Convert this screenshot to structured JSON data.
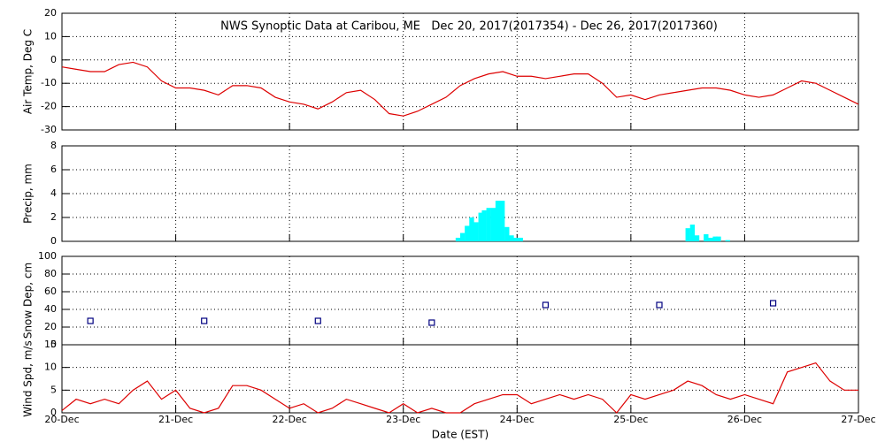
{
  "chart_data": [
    {
      "type": "line",
      "title": "NWS Synoptic Data at Caribou, ME   Dec 20, 2017(2017354) - Dec 26, 2017(2017360)",
      "ylabel": "Air Temp, Deg C",
      "color": "#dd0000",
      "x": [
        0,
        0.125,
        0.25,
        0.375,
        0.5,
        0.625,
        0.75,
        0.875,
        1,
        1.125,
        1.25,
        1.375,
        1.5,
        1.625,
        1.75,
        1.875,
        2,
        2.125,
        2.25,
        2.375,
        2.5,
        2.625,
        2.75,
        2.875,
        3,
        3.125,
        3.25,
        3.375,
        3.5,
        3.625,
        3.75,
        3.875,
        4,
        4.125,
        4.25,
        4.375,
        4.5,
        4.625,
        4.75,
        4.875,
        5,
        5.125,
        5.25,
        5.375,
        5.5,
        5.625,
        5.75,
        5.875,
        6,
        6.125,
        6.25,
        6.375,
        6.5,
        6.625,
        6.75,
        6.875,
        7
      ],
      "values": [
        -3,
        -4,
        -5,
        -5,
        -2,
        -1,
        -3,
        -9,
        -12,
        -12,
        -13,
        -15,
        -11,
        -11,
        -12,
        -16,
        -18,
        -19,
        -21,
        -18,
        -14,
        -13,
        -17,
        -23,
        -24,
        -22,
        -19,
        -16,
        -11,
        -8,
        -6,
        -5,
        -7,
        -7,
        -8,
        -7,
        -6,
        -6,
        -10,
        -16,
        -15,
        -17,
        -15,
        -14,
        -13,
        -12,
        -12,
        -13,
        -15,
        -16,
        -15,
        -12,
        -9,
        -10,
        -13,
        -16,
        -19
      ],
      "xlim": [
        0,
        7
      ],
      "xticks": [
        0,
        1,
        2,
        3,
        4,
        5,
        6,
        7
      ],
      "ylim": [
        -30,
        20
      ],
      "yticks": [
        -30,
        -20,
        -10,
        0,
        10,
        20
      ],
      "grid": true
    },
    {
      "type": "bar",
      "ylabel": "Precip, mm",
      "color": "#00ffff",
      "x": [
        3.46,
        3.5,
        3.54,
        3.58,
        3.62,
        3.66,
        3.69,
        3.73,
        3.77,
        3.81,
        3.85,
        3.89,
        3.93,
        3.97,
        4.01,
        5.48,
        5.52,
        5.56,
        5.64,
        5.68,
        5.72,
        5.75,
        5.83
      ],
      "values": [
        0.3,
        0.7,
        1.3,
        2.0,
        1.6,
        2.4,
        2.6,
        2.8,
        2.8,
        3.4,
        3.4,
        1.2,
        0.5,
        0.3,
        0.3,
        1.1,
        1.4,
        0.5,
        0.6,
        0.3,
        0.4,
        0.4,
        0.1
      ],
      "xlim": [
        0,
        7
      ],
      "xticks": [
        0,
        1,
        2,
        3,
        4,
        5,
        6,
        7
      ],
      "ylim": [
        0,
        8
      ],
      "yticks": [
        0,
        2,
        4,
        6,
        8
      ],
      "grid": true
    },
    {
      "type": "scatter",
      "ylabel": "Snow Dep, cm",
      "color": "#000080",
      "x": [
        0.25,
        1.25,
        2.25,
        3.25,
        4.25,
        5.25,
        6.25
      ],
      "values": [
        27,
        27,
        27,
        25,
        45,
        45,
        47
      ],
      "xlim": [
        0,
        7
      ],
      "xticks": [
        0,
        1,
        2,
        3,
        4,
        5,
        6,
        7
      ],
      "ylim": [
        0,
        100
      ],
      "yticks": [
        0,
        20,
        40,
        60,
        80,
        100
      ],
      "grid": true
    },
    {
      "type": "line",
      "ylabel": "Wind Spd, m/s",
      "xlabel": "Date (EST)",
      "color": "#dd0000",
      "x": [
        0,
        0.125,
        0.25,
        0.375,
        0.5,
        0.625,
        0.75,
        0.875,
        1,
        1.125,
        1.25,
        1.375,
        1.5,
        1.625,
        1.75,
        1.875,
        2,
        2.125,
        2.25,
        2.375,
        2.5,
        2.625,
        2.75,
        2.875,
        3,
        3.125,
        3.25,
        3.375,
        3.5,
        3.625,
        3.75,
        3.875,
        4,
        4.125,
        4.25,
        4.375,
        4.5,
        4.625,
        4.75,
        4.875,
        5,
        5.125,
        5.25,
        5.375,
        5.5,
        5.625,
        5.75,
        5.875,
        6,
        6.125,
        6.25,
        6.375,
        6.5,
        6.625,
        6.75,
        6.875,
        7
      ],
      "values": [
        0.5,
        3,
        2,
        3,
        2,
        5,
        7,
        3,
        5,
        1,
        0,
        1,
        6,
        6,
        5,
        3,
        1,
        2,
        0,
        1,
        3,
        2,
        1,
        0,
        2,
        0,
        1,
        0,
        0,
        2,
        3,
        4,
        4,
        2,
        3,
        4,
        3,
        4,
        3,
        0,
        4,
        3,
        4,
        5,
        7,
        6,
        4,
        3,
        4,
        3,
        2,
        9,
        10,
        11,
        7,
        5,
        5
      ],
      "xlim": [
        0,
        7
      ],
      "xticks": [
        {
          "value": 0,
          "label": "20-Dec"
        },
        {
          "value": 1,
          "label": "21-Dec"
        },
        {
          "value": 2,
          "label": "22-Dec"
        },
        {
          "value": 3,
          "label": "23-Dec"
        },
        {
          "value": 4,
          "label": "24-Dec"
        },
        {
          "value": 5,
          "label": "25-Dec"
        },
        {
          "value": 6,
          "label": "26-Dec"
        },
        {
          "value": 7,
          "label": "27-Dec"
        }
      ],
      "ylim": [
        0,
        15
      ],
      "yticks": [
        0,
        5,
        10,
        15
      ],
      "grid": true
    }
  ]
}
